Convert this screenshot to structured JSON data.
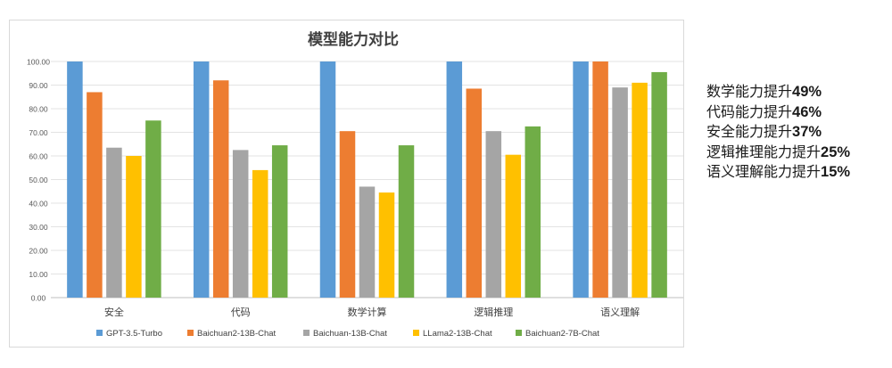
{
  "chart_data": {
    "type": "bar",
    "title": "模型能力对比",
    "xlabel": "",
    "ylabel": "",
    "ylim": [
      0,
      100
    ],
    "yticks": [
      "0.00",
      "10.00",
      "20.00",
      "30.00",
      "40.00",
      "50.00",
      "60.00",
      "70.00",
      "80.00",
      "90.00",
      "100.00"
    ],
    "grid": true,
    "legend_position": "bottom",
    "categories": [
      "安全",
      "代码",
      "数学计算",
      "逻辑推理",
      "语义理解"
    ],
    "series": [
      {
        "name": "GPT-3.5-Turbo",
        "color": "#5b9bd5",
        "values": [
          100,
          100,
          100,
          100,
          100
        ]
      },
      {
        "name": "Baichuan2-13B-Chat",
        "color": "#ed7d31",
        "values": [
          87,
          92,
          70.5,
          88.5,
          100
        ]
      },
      {
        "name": "Baichuan-13B-Chat",
        "color": "#a5a5a5",
        "values": [
          63.5,
          62.5,
          47,
          70.5,
          89
        ]
      },
      {
        "name": "LLama2-13B-Chat",
        "color": "#ffc000",
        "values": [
          60,
          54,
          44.5,
          60.5,
          91
        ]
      },
      {
        "name": "Baichuan2-7B-Chat",
        "color": "#70ad47",
        "values": [
          75,
          64.5,
          64.5,
          72.5,
          95.5
        ]
      }
    ]
  },
  "callouts": [
    {
      "label": "数学能力提升",
      "value": "49%"
    },
    {
      "label": "代码能力提升",
      "value": "46%"
    },
    {
      "label": "安全能力提升",
      "value": "37%"
    },
    {
      "label": "逻辑推理能力提升",
      "value": "25%"
    },
    {
      "label": "语义理解能力提升",
      "value": "15%"
    }
  ]
}
